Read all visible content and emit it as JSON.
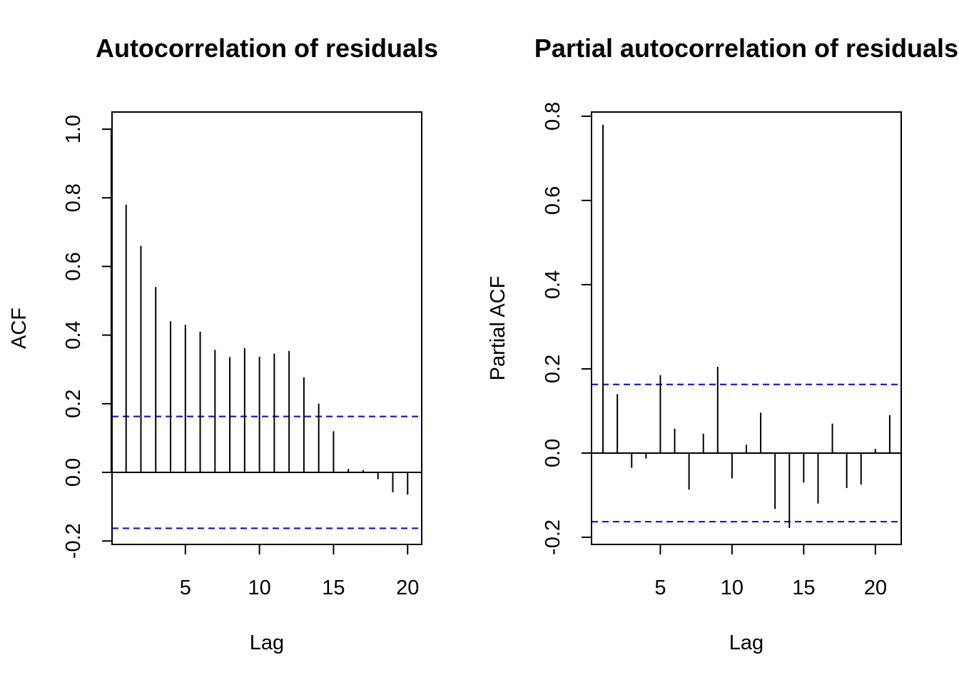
{
  "chart_data": [
    {
      "type": "bar",
      "title": "Autocorrelation of residuals",
      "xlabel": "Lag",
      "ylabel": "ACF",
      "xlim": [
        0.05,
        20.95
      ],
      "ylim": [
        -0.21,
        1.05
      ],
      "x_ticks": [
        5,
        10,
        15,
        20
      ],
      "y_ticks": [
        "-0.2",
        "0.0",
        "0.2",
        "0.4",
        "0.6",
        "0.8",
        "1.0"
      ],
      "zero_line": true,
      "confidence_bounds": [
        0.163,
        -0.163
      ],
      "confidence_bounds_color": "#0000ff",
      "lags": [
        0,
        1,
        2,
        3,
        4,
        5,
        6,
        7,
        8,
        9,
        10,
        11,
        12,
        13,
        14,
        15,
        16,
        17,
        18,
        19,
        20
      ],
      "values": [
        1.0,
        0.78,
        0.66,
        0.54,
        0.44,
        0.43,
        0.41,
        0.357,
        0.336,
        0.362,
        0.337,
        0.346,
        0.354,
        0.277,
        0.2,
        0.12,
        0.01,
        0.007,
        -0.02,
        -0.058,
        -0.065
      ]
    },
    {
      "type": "bar",
      "title": "Partial autocorrelation of residuals",
      "xlabel": "Lag",
      "ylabel": "Partial ACF",
      "xlim": [
        0.2,
        21.8
      ],
      "ylim": [
        -0.217,
        0.81
      ],
      "x_ticks": [
        5,
        10,
        15,
        20
      ],
      "y_ticks": [
        "-0.2",
        "0.0",
        "0.2",
        "0.4",
        "0.6",
        "0.8"
      ],
      "zero_line": true,
      "confidence_bounds": [
        0.163,
        -0.163
      ],
      "confidence_bounds_color": "#0000ff",
      "lags": [
        1,
        2,
        3,
        4,
        5,
        6,
        7,
        8,
        9,
        10,
        11,
        12,
        13,
        14,
        15,
        16,
        17,
        18,
        19,
        20,
        21
      ],
      "values": [
        0.78,
        0.14,
        -0.035,
        -0.013,
        0.185,
        0.058,
        -0.087,
        0.046,
        0.205,
        -0.06,
        0.02,
        0.096,
        -0.133,
        -0.178,
        -0.07,
        -0.12,
        0.07,
        -0.083,
        -0.075,
        0.01,
        0.09
      ]
    }
  ]
}
